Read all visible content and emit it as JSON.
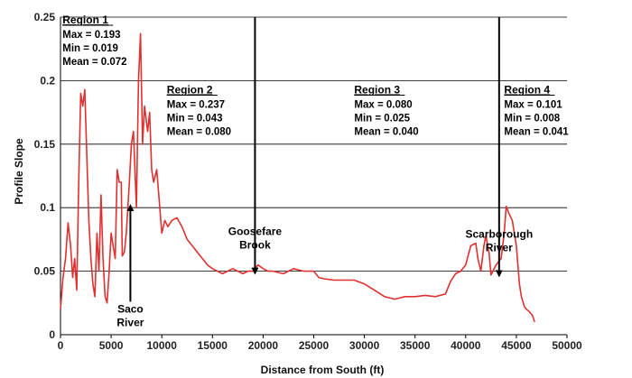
{
  "chart_data": {
    "type": "line",
    "xlabel": "Distance from South (ft)",
    "ylabel": "Profile Slope",
    "xlim": [
      0,
      50000
    ],
    "ylim": [
      0,
      0.25
    ],
    "xticks": [
      0,
      5000,
      10000,
      15000,
      20000,
      25000,
      30000,
      35000,
      40000,
      45000,
      50000
    ],
    "yticks": [
      0,
      0.05,
      0.1,
      0.15,
      0.2,
      0.25
    ],
    "grid": "horizontal",
    "series_color": "#e03030",
    "series": [
      {
        "x": [
          0,
          250,
          500,
          750,
          1000,
          1200,
          1400,
          1600,
          1800,
          2000,
          2200,
          2400,
          2600,
          2800,
          3000,
          3200,
          3400,
          3600,
          3800,
          4000,
          4200,
          4400,
          4600,
          4800,
          5000,
          5200,
          5400,
          5600,
          5800,
          6000,
          6100,
          6300,
          6500,
          6800,
          7000,
          7200,
          7500,
          7700,
          7900,
          8100,
          8300,
          8600,
          8800,
          9000,
          9200,
          9500,
          9800,
          10000,
          10300,
          10600,
          11000,
          11500,
          12000,
          12500,
          13000,
          13500,
          14000,
          14500,
          15000,
          15500,
          16000,
          16500,
          17000,
          17500,
          18000,
          18500,
          19000,
          19500,
          20000,
          20500,
          21000,
          22000,
          23000,
          24000,
          25000,
          25500,
          26000,
          27000,
          28000,
          29000,
          30000,
          31000,
          32000,
          33000,
          34000,
          35000,
          36000,
          37000,
          38000,
          38500,
          39000,
          39500,
          40000,
          40500,
          41000,
          41200,
          41500,
          41800,
          42000,
          42300,
          42500,
          43000,
          43500,
          43800,
          44000,
          44300,
          44600,
          45000,
          45300,
          45500,
          45800,
          46000,
          46300,
          46600,
          46800
        ],
        "y": [
          0.02,
          0.045,
          0.06,
          0.088,
          0.07,
          0.045,
          0.06,
          0.035,
          0.12,
          0.19,
          0.18,
          0.193,
          0.14,
          0.09,
          0.06,
          0.04,
          0.03,
          0.08,
          0.05,
          0.11,
          0.06,
          0.03,
          0.025,
          0.05,
          0.08,
          0.07,
          0.06,
          0.13,
          0.12,
          0.12,
          0.062,
          0.065,
          0.08,
          0.12,
          0.15,
          0.16,
          0.1,
          0.2,
          0.237,
          0.15,
          0.18,
          0.16,
          0.175,
          0.13,
          0.12,
          0.13,
          0.1,
          0.08,
          0.09,
          0.085,
          0.09,
          0.092,
          0.085,
          0.075,
          0.07,
          0.065,
          0.06,
          0.055,
          0.052,
          0.05,
          0.048,
          0.05,
          0.052,
          0.05,
          0.048,
          0.05,
          0.05,
          0.055,
          0.052,
          0.05,
          0.05,
          0.048,
          0.052,
          0.05,
          0.05,
          0.045,
          0.044,
          0.043,
          0.043,
          0.043,
          0.04,
          0.035,
          0.03,
          0.028,
          0.03,
          0.03,
          0.031,
          0.03,
          0.032,
          0.042,
          0.048,
          0.05,
          0.055,
          0.07,
          0.072,
          0.06,
          0.05,
          0.07,
          0.078,
          0.065,
          0.047,
          0.055,
          0.06,
          0.08,
          0.101,
          0.095,
          0.09,
          0.07,
          0.04,
          0.03,
          0.022,
          0.02,
          0.018,
          0.015,
          0.01
        ]
      }
    ],
    "regions": [
      {
        "title": "Region 1",
        "max": "Max = 0.193",
        "min": "Min = 0.019",
        "mean": "Mean = 0.072",
        "x": 200,
        "y": 0.245
      },
      {
        "title": "Region 2",
        "max": "Max = 0.237",
        "min": "Min = 0.043",
        "mean": "Mean = 0.080",
        "x": 10500,
        "y": 0.19
      },
      {
        "title": "Region 3",
        "max": "Max = 0.080",
        "min": "Min = 0.025",
        "mean": "Mean = 0.040",
        "x": 29000,
        "y": 0.19
      },
      {
        "title": "Region 4",
        "max": "Max = 0.101",
        "min": "Min = 0.008",
        "mean": "Mean = 0.041",
        "x": 43800,
        "y": 0.19
      }
    ],
    "annotations": [
      {
        "label_lines": [
          "Saco",
          "River"
        ],
        "x": 6900,
        "arrow_from": 0.026,
        "arrow_to": 0.1,
        "direction": "up"
      },
      {
        "label_lines": [
          "Goosefare",
          "Brook"
        ],
        "x": 19200,
        "arrow_from": 0.25,
        "arrow_to": 0.05,
        "direction": "down"
      },
      {
        "label_lines": [
          "Scarborough",
          "River"
        ],
        "x": 43300,
        "arrow_from": 0.25,
        "arrow_to": 0.048,
        "direction": "down"
      }
    ],
    "region_dividers": [
      6900,
      19200,
      43300
    ]
  }
}
